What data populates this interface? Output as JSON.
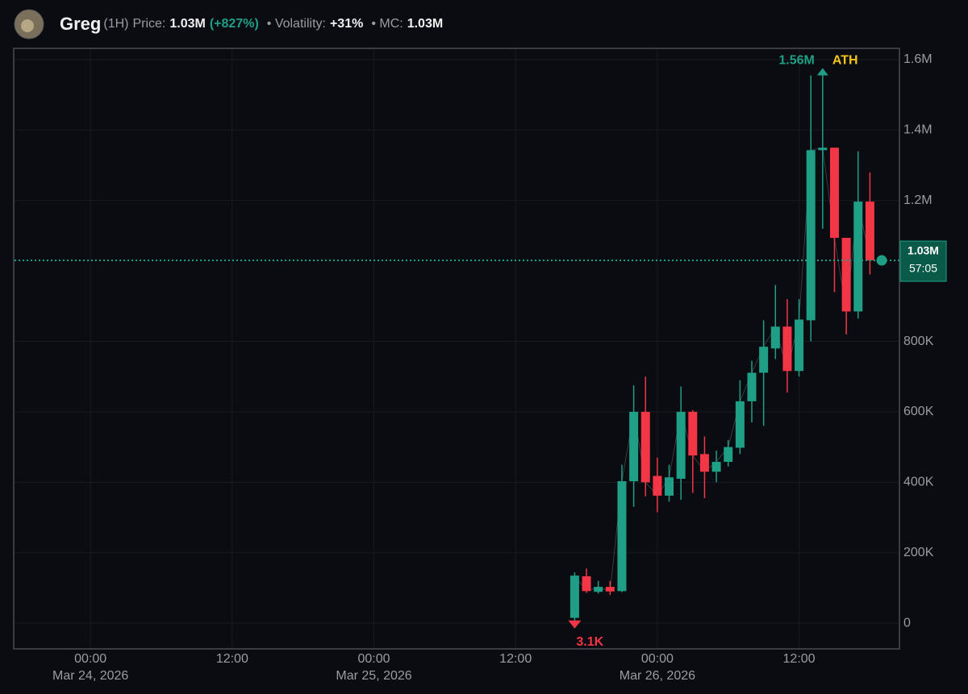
{
  "header": {
    "name": "Greg",
    "interval": "(1H)",
    "price_label": "Price:",
    "price": "1.03M",
    "change": "(+827%)",
    "volatility_label": "• Volatility:",
    "volatility": "+31%",
    "mc_label": "• MC:",
    "mc": "1.03M"
  },
  "chart_data": {
    "type": "candlestick",
    "x": [
      "2026-03-25T17:00",
      "2026-03-25T18:00",
      "2026-03-25T19:00",
      "2026-03-25T20:00",
      "2026-03-25T21:00",
      "2026-03-25T22:00",
      "2026-03-25T23:00",
      "2026-03-26T00:00",
      "2026-03-26T01:00",
      "2026-03-26T02:00",
      "2026-03-26T03:00",
      "2026-03-26T04:00",
      "2026-03-26T05:00",
      "2026-03-26T06:00",
      "2026-03-26T07:00",
      "2026-03-26T08:00",
      "2026-03-26T09:00",
      "2026-03-26T10:00",
      "2026-03-26T11:00",
      "2026-03-26T12:00",
      "2026-03-26T13:00",
      "2026-03-26T14:00",
      "2026-03-26T15:00",
      "2026-03-26T16:00",
      "2026-03-26T17:00",
      "2026-03-26T18:00"
    ],
    "open": [
      15000,
      133000,
      89000,
      103000,
      91000,
      403000,
      600000,
      418000,
      362000,
      410000,
      600000,
      480000,
      430000,
      458000,
      498000,
      630000,
      711000,
      780000,
      842000,
      716000,
      860000,
      1343000,
      1350000,
      1094000,
      885000,
      1197000
    ],
    "high": [
      144000,
      155000,
      120000,
      120000,
      450000,
      675000,
      700000,
      470000,
      450000,
      672000,
      605000,
      530000,
      490000,
      520000,
      690000,
      745000,
      860000,
      960000,
      920000,
      920000,
      1555000,
      1560000,
      1350000,
      1094000,
      1340000,
      1280000
    ],
    "low": [
      3100,
      86000,
      84000,
      80000,
      88000,
      330000,
      360000,
      315000,
      345000,
      350000,
      370000,
      355000,
      400000,
      445000,
      480000,
      570000,
      560000,
      750000,
      655000,
      700000,
      800000,
      1120000,
      940000,
      820000,
      865000,
      990000
    ],
    "close": [
      135000,
      91000,
      103000,
      90000,
      403000,
      600000,
      400000,
      362000,
      414000,
      600000,
      476000,
      430000,
      458000,
      500000,
      630000,
      711000,
      785000,
      842000,
      716000,
      862000,
      1343000,
      1350000,
      1094000,
      885000,
      1197000,
      1030000
    ],
    "up_color": "#1f9f86",
    "down_color": "#f23645",
    "ylim": [
      -73000,
      1632000
    ],
    "yticks": [
      0,
      {
        "value": 200000,
        "label": "200K"
      },
      {
        "value": 400000,
        "label": "400K"
      },
      {
        "value": 600000,
        "label": "600K"
      },
      {
        "value": 800000,
        "label": "800K"
      },
      {
        "value": 1200000,
        "label": "1.2M"
      },
      {
        "value": 1400000,
        "label": "1.4M"
      },
      {
        "value": 1600000,
        "label": "1.6M"
      }
    ],
    "xlim": [
      "2026-03-23T17:30",
      "2026-03-26T20:30"
    ],
    "xticks": [
      {
        "value": "2026-03-24T00:00",
        "label": "00:00",
        "sublabel": "Mar 24, 2026"
      },
      {
        "value": "2026-03-24T12:00",
        "label": "12:00"
      },
      {
        "value": "2026-03-25T00:00",
        "label": "00:00",
        "sublabel": "Mar 25, 2026"
      },
      {
        "value": "2026-03-25T12:00",
        "label": "12:00"
      },
      {
        "value": "2026-03-26T00:00",
        "label": "00:00",
        "sublabel": "Mar 26, 2026"
      },
      {
        "value": "2026-03-26T12:00",
        "label": "12:00"
      }
    ],
    "grid": true,
    "ath": {
      "value": 1560000,
      "label": "1.56M",
      "tag": "ATH"
    },
    "low_mark": {
      "value": 3100,
      "label": "3.1K"
    },
    "last_price": {
      "value": 1030000,
      "label": "1.03M",
      "countdown": "57:05"
    }
  }
}
